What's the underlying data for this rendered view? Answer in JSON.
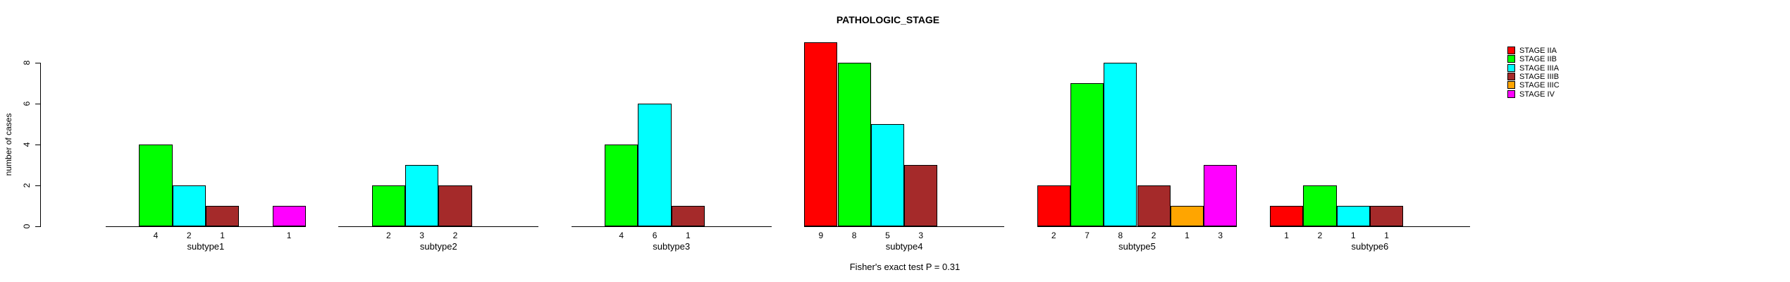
{
  "chart_data": {
    "type": "bar",
    "title": "PATHOLOGIC_STAGE",
    "annotation": "Fisher's exact test P = 0.31",
    "xlabel": "",
    "ylabel": "number of cases",
    "ylim": [
      0,
      8
    ],
    "yticks": [
      0,
      2,
      4,
      6,
      8
    ],
    "grid": "off",
    "legend_position": "top-right",
    "categories": [
      "subtype1",
      "subtype2",
      "subtype3",
      "subtype4",
      "subtype5",
      "subtype6"
    ],
    "series": [
      {
        "name": "STAGE IIA",
        "color": "#FF0000",
        "values": [
          0,
          0,
          0,
          9,
          2,
          1
        ]
      },
      {
        "name": "STAGE IIB",
        "color": "#00FF00",
        "values": [
          4,
          2,
          4,
          8,
          7,
          2
        ]
      },
      {
        "name": "STAGE IIIA",
        "color": "#00FFFF",
        "values": [
          2,
          3,
          6,
          5,
          8,
          1
        ]
      },
      {
        "name": "STAGE IIIB",
        "color": "#A52A2A",
        "values": [
          1,
          2,
          1,
          3,
          2,
          1
        ]
      },
      {
        "name": "STAGE IIIC",
        "color": "#FFA500",
        "values": [
          0,
          0,
          0,
          0,
          1,
          0
        ]
      },
      {
        "name": "STAGE IV",
        "color": "#FF00FF",
        "values": [
          1,
          0,
          0,
          0,
          3,
          0
        ]
      }
    ],
    "bar_value_labels_shown": true,
    "axis_color": "#000000",
    "background_color": "#FFFFFF"
  }
}
